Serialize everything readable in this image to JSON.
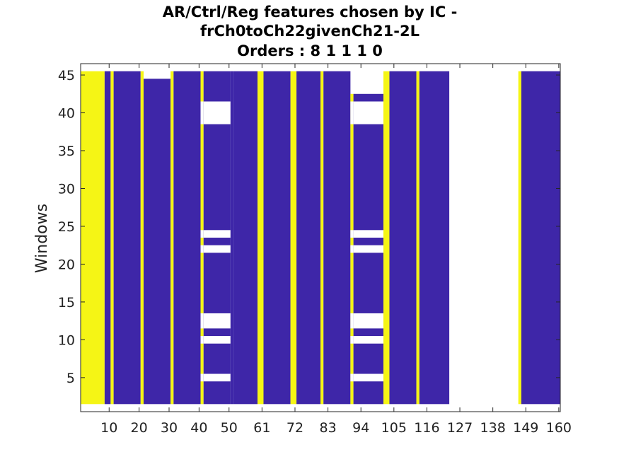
{
  "chart_data": {
    "type": "heatmap",
    "title_lines": [
      "AR/Ctrl/Reg features chosen by IC -",
      "frCh0toCh22givenCh21-2L",
      "Orders : 8 1 1 1 0"
    ],
    "xlabel": "",
    "ylabel": "Windows",
    "xlim": [
      0.5,
      160.5
    ],
    "ylim": [
      0.5,
      46.5
    ],
    "x_ticks": [
      10,
      20,
      30,
      40,
      50,
      61,
      72,
      83,
      94,
      105,
      116,
      127,
      138,
      149,
      160
    ],
    "y_ticks": [
      5,
      10,
      15,
      20,
      25,
      30,
      35,
      40,
      45
    ],
    "background_color": "#ffffff",
    "colors": {
      "chosen": "#f5f515",
      "not_chosen": "#3e26a8",
      "blank": "#ffffff"
    },
    "columns": [
      {
        "x": [
          1,
          8
        ],
        "state": "chosen",
        "y": [
          2,
          45
        ]
      },
      {
        "x": [
          9,
          10
        ],
        "state": "not_chosen",
        "y": [
          2,
          45
        ]
      },
      {
        "x": [
          11,
          11
        ],
        "state": "chosen",
        "y": [
          2,
          45
        ]
      },
      {
        "x": [
          12,
          20
        ],
        "state": "not_chosen",
        "y": [
          2,
          45
        ]
      },
      {
        "x": [
          21,
          21
        ],
        "state": "chosen",
        "y": [
          2,
          45
        ]
      },
      {
        "x": [
          22,
          30
        ],
        "state": "not_chosen",
        "y": [
          2,
          44
        ]
      },
      {
        "x": [
          31,
          31
        ],
        "state": "chosen",
        "y": [
          2,
          45
        ]
      },
      {
        "x": [
          32,
          40
        ],
        "state": "not_chosen",
        "y": [
          2,
          45
        ]
      },
      {
        "x": [
          41,
          41
        ],
        "state": "chosen",
        "y": [
          2,
          45
        ],
        "gaps": [
          [
            39,
            41
          ],
          [
            24,
            24
          ],
          [
            22,
            22
          ],
          [
            12,
            13
          ],
          [
            10,
            10
          ],
          [
            5,
            5
          ]
        ]
      },
      {
        "x": [
          42,
          50
        ],
        "state": "not_chosen",
        "y": [
          2,
          45
        ],
        "gaps": [
          [
            39,
            41
          ],
          [
            24,
            24
          ],
          [
            22,
            22
          ],
          [
            12,
            13
          ],
          [
            10,
            10
          ],
          [
            5,
            5
          ]
        ]
      },
      {
        "x": [
          51,
          51
        ],
        "state": "not_chosen",
        "y": [
          2,
          45
        ]
      },
      {
        "x": [
          52,
          59
        ],
        "state": "not_chosen",
        "y": [
          2,
          45
        ]
      },
      {
        "x": [
          60,
          61
        ],
        "state": "chosen",
        "y": [
          2,
          45
        ]
      },
      {
        "x": [
          62,
          70
        ],
        "state": "not_chosen",
        "y": [
          2,
          45
        ]
      },
      {
        "x": [
          71,
          72
        ],
        "state": "chosen",
        "y": [
          2,
          45
        ]
      },
      {
        "x": [
          73,
          80
        ],
        "state": "not_chosen",
        "y": [
          2,
          45
        ]
      },
      {
        "x": [
          81,
          81
        ],
        "state": "chosen",
        "y": [
          2,
          45
        ]
      },
      {
        "x": [
          82,
          90
        ],
        "state": "not_chosen",
        "y": [
          2,
          45
        ]
      },
      {
        "x": [
          91,
          91
        ],
        "state": "chosen",
        "y": [
          2,
          42
        ],
        "gaps": [
          [
            39,
            41
          ],
          [
            24,
            24
          ],
          [
            22,
            22
          ],
          [
            12,
            13
          ],
          [
            10,
            10
          ],
          [
            5,
            5
          ]
        ]
      },
      {
        "x": [
          92,
          101
        ],
        "state": "not_chosen",
        "y": [
          2,
          42
        ],
        "gaps": [
          [
            39,
            41
          ],
          [
            24,
            24
          ],
          [
            22,
            22
          ],
          [
            12,
            13
          ],
          [
            10,
            10
          ],
          [
            5,
            5
          ]
        ]
      },
      {
        "x": [
          102,
          103
        ],
        "state": "chosen",
        "y": [
          2,
          45
        ]
      },
      {
        "x": [
          104,
          112
        ],
        "state": "not_chosen",
        "y": [
          2,
          45
        ]
      },
      {
        "x": [
          113,
          113
        ],
        "state": "chosen",
        "y": [
          2,
          45
        ]
      },
      {
        "x": [
          114,
          123
        ],
        "state": "not_chosen",
        "y": [
          2,
          45
        ]
      },
      {
        "x": [
          124,
          146
        ],
        "state": "blank",
        "y": [
          2,
          45
        ]
      },
      {
        "x": [
          147,
          147
        ],
        "state": "chosen",
        "y": [
          2,
          45
        ]
      },
      {
        "x": [
          148,
          160
        ],
        "state": "not_chosen",
        "y": [
          2,
          45
        ]
      }
    ]
  }
}
